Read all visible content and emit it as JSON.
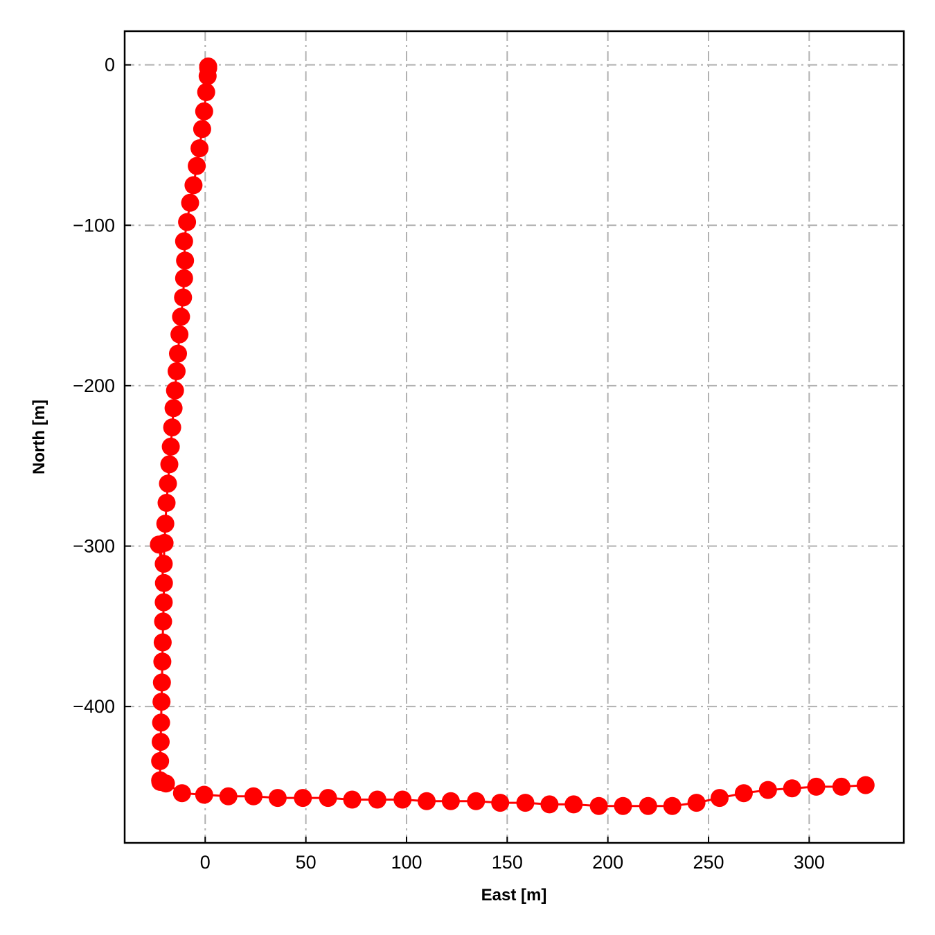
{
  "chart_data": {
    "type": "line",
    "title": "",
    "xlabel": "East [m]",
    "ylabel": "North [m]",
    "xlim": [
      -40,
      347
    ],
    "ylim": [
      -485,
      21
    ],
    "xticks": [
      0,
      50,
      100,
      150,
      200,
      250,
      300
    ],
    "yticks": [
      0,
      -100,
      -200,
      -300,
      -400
    ],
    "xtick_labels": [
      "0",
      "50",
      "100",
      "150",
      "200",
      "250",
      "300"
    ],
    "ytick_labels": [
      "0",
      "−100",
      "−200",
      "−300",
      "−400"
    ],
    "grid": true,
    "grid_style": "dash-dot",
    "legend": "none",
    "colors": {
      "series": "#ff0000",
      "grid": "#b0b0b0",
      "axes": "#000000"
    },
    "series": [
      {
        "marker": "circle",
        "x": [
          1.5,
          1.5,
          1.2,
          0.5,
          -0.5,
          -1.5,
          -2.8,
          -4.2,
          -5.8,
          -7.5,
          -9.0,
          -10.5,
          -10.0,
          -10.5,
          -11.0,
          -12.0,
          -12.8,
          -13.5,
          -14.2,
          -15.0,
          -15.7,
          -16.4,
          -17.1,
          -17.8,
          -18.5,
          -19.2,
          -19.8,
          -20.2,
          -20.6,
          -23.0,
          -20.5,
          -20.6,
          -20.9,
          -21.1,
          -21.3,
          -21.5,
          -21.7,
          -21.9,
          -22.1,
          -22.4,
          -22.4,
          -22.3,
          -19.5,
          -11.5,
          -0.5,
          11.5,
          24.0,
          36.0,
          48.5,
          61.0,
          73.0,
          85.5,
          98.0,
          110.0,
          122.0,
          134.5,
          146.5,
          159.0,
          171.0,
          183.0,
          195.5,
          207.5,
          220.0,
          232.0,
          244.0,
          255.5,
          267.5,
          279.5,
          291.5,
          303.5,
          316.0,
          328.0
        ],
        "y": [
          -1,
          -2,
          -7,
          -17,
          -29,
          -40,
          -52,
          -63,
          -75,
          -86,
          -98,
          -110,
          -122,
          -133,
          -145,
          -157,
          -168,
          -180,
          -191,
          -203,
          -214,
          -226,
          -238,
          -249,
          -261,
          -273,
          -286,
          -298,
          -311,
          -299,
          -323,
          -335,
          -347,
          -360,
          -372,
          -385,
          -397,
          -410,
          -422,
          -434,
          -446,
          -447,
          -448,
          -454,
          -455,
          -456,
          -456,
          -457,
          -457,
          -457,
          -458,
          -458,
          -458,
          -459,
          -459,
          -459,
          -460,
          -460,
          -461,
          -461,
          -462,
          -462,
          -462,
          -462,
          -460,
          -457,
          -454,
          -452,
          -451,
          -450,
          -450,
          -449
        ]
      }
    ]
  }
}
